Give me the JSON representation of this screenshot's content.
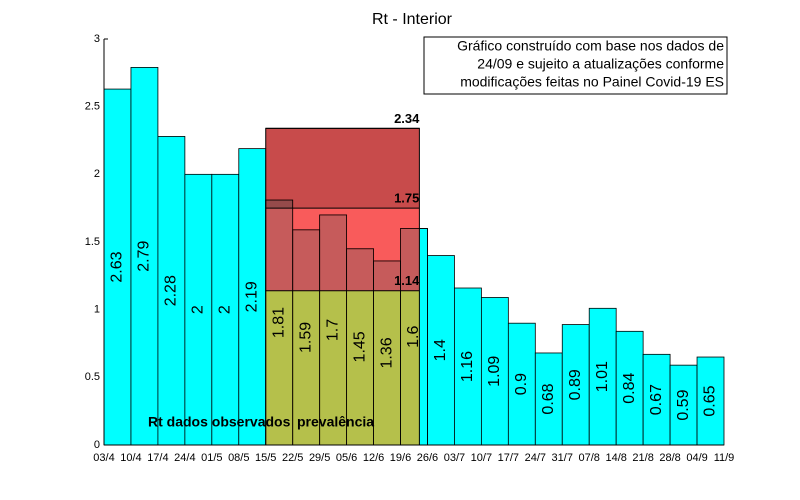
{
  "chart_data": {
    "type": "histogram",
    "title": "Rt - Interior",
    "annotation": [
      "Gráfico construído com base nos dados de",
      "24/09 e sujeito a atualizações conforme",
      "modificações feitas no Painel Covid-19 ES"
    ],
    "bins": [
      "03/4",
      "10/4",
      "17/4",
      "24/4",
      "01/5",
      "08/5",
      "15/5",
      "22/5",
      "29/5",
      "05/6",
      "12/6",
      "19/6",
      "26/6",
      "03/7",
      "10/7",
      "17/7",
      "24/7",
      "31/7",
      "07/8",
      "14/8",
      "21/8",
      "28/8",
      "04/9",
      "11/9"
    ],
    "values": [
      2.63,
      2.79,
      2.28,
      2,
      2,
      2.19,
      1.81,
      1.59,
      1.7,
      1.45,
      1.36,
      1.6,
      1.4,
      1.16,
      1.09,
      0.9,
      0.68,
      0.89,
      1.01,
      0.84,
      0.67,
      0.59,
      0.65
    ],
    "color": "#00ffff",
    "reference_levels": [
      2.34,
      1.75,
      1.14
    ],
    "band_colors": [
      "#ba1e1e",
      "#f73232",
      "#e2b01e"
    ],
    "region_labels": [
      "Rt dados observados",
      "prevalência"
    ],
    "ylim": [
      0,
      3
    ],
    "yticks": [
      0,
      0.5,
      1,
      1.5,
      2,
      2.5,
      3
    ]
  }
}
